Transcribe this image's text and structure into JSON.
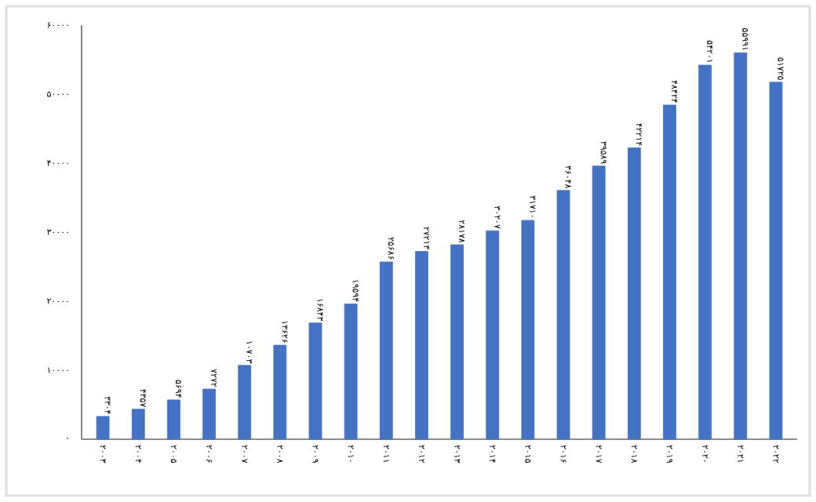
{
  "chart_data": {
    "type": "bar",
    "categories": [
      "۲۰۰۳",
      "۲۰۰۴",
      "۲۰۰۵",
      "۲۰۰۶",
      "۲۰۰۷",
      "۲۰۰۸",
      "۲۰۰۹",
      "۲۰۱۰",
      "۲۰۱۱",
      "۲۰۱۲",
      "۲۰۱۳",
      "۲۰۱۴",
      "۲۰۱۵",
      "۲۰۱۶",
      "۲۰۱۷",
      "۲۰۱۸",
      "۲۰۱۹",
      "۲۰۲۰",
      "۲۰۲۱",
      "۲۰۲۲"
    ],
    "values": [
      3304,
      4357,
      5694,
      7272,
      10703,
      13626,
      16843,
      19594,
      25686,
      27213,
      28178,
      30207,
      31710,
      36048,
      39589,
      42214,
      48424,
      54201,
      55991,
      51725
    ],
    "value_labels": [
      "۳۳۰۴",
      "۴۳۵۷",
      "۵۶۹۴",
      "۷۲۷۲",
      "۱۰۷۰۳",
      "۱۳۶۲۶",
      "۱۶۸۴۳",
      "۱۹۵۹۴",
      "۲۵۶۸۶",
      "۲۷۲۱۳",
      "۲۸۱۷۸",
      "۳۰۲۰۷",
      "۳۱۷۱۰",
      "۳۶۰۴۸",
      "۳۹۵۸۹",
      "۴۲۲۱۴",
      "۴۸۴۲۴",
      "۵۴۲۰۱",
      "۵۵۹۹۱",
      "۵۱۷۲۵"
    ],
    "color": "#4472c4",
    "ylim": [
      0,
      60000
    ],
    "yticks": [
      {
        "value": 0,
        "label": "۰"
      },
      {
        "value": 10000,
        "label": "۱۰۰۰۰"
      },
      {
        "value": 20000,
        "label": "۲۰۰۰۰"
      },
      {
        "value": 30000,
        "label": "۳۰۰۰۰"
      },
      {
        "value": 40000,
        "label": "۴۰۰۰۰"
      },
      {
        "value": 50000,
        "label": "۵۰۰۰۰"
      },
      {
        "value": 60000,
        "label": "۶۰۰۰۰"
      }
    ]
  }
}
